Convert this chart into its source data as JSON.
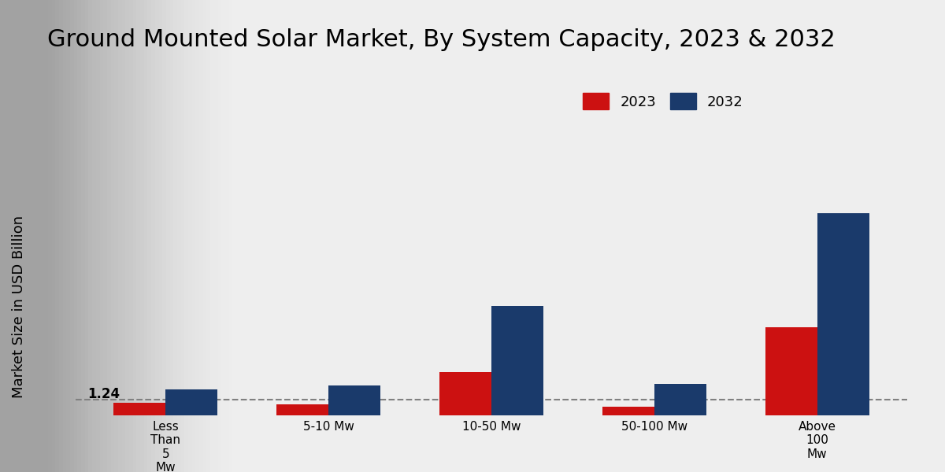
{
  "title": "Ground Mounted Solar Market, By System Capacity, 2023 & 2032",
  "ylabel": "Market Size in USD Billion",
  "categories": [
    "Less\nThan\n5\nMw",
    "5-10 Mw",
    "10-50 Mw",
    "50-100 Mw",
    "Above\n100\nMw"
  ],
  "values_2023": [
    1.24,
    1.05,
    4.2,
    0.85,
    8.5
  ],
  "values_2032": [
    2.5,
    2.9,
    10.5,
    3.0,
    19.5
  ],
  "color_2023": "#cc1111",
  "color_2032": "#1a3a6b",
  "annotation_val": "1.24",
  "annotation_cat_idx": 0,
  "bar_width": 0.32,
  "ylim": [
    0,
    25
  ],
  "dashed_line_y": 1.5,
  "bg_color_light": "#e8e8e8",
  "bg_color_dark": "#c8c8c8",
  "legend_labels": [
    "2023",
    "2032"
  ],
  "title_fontsize": 22,
  "axis_label_fontsize": 13,
  "tick_fontsize": 11,
  "legend_fontsize": 13
}
